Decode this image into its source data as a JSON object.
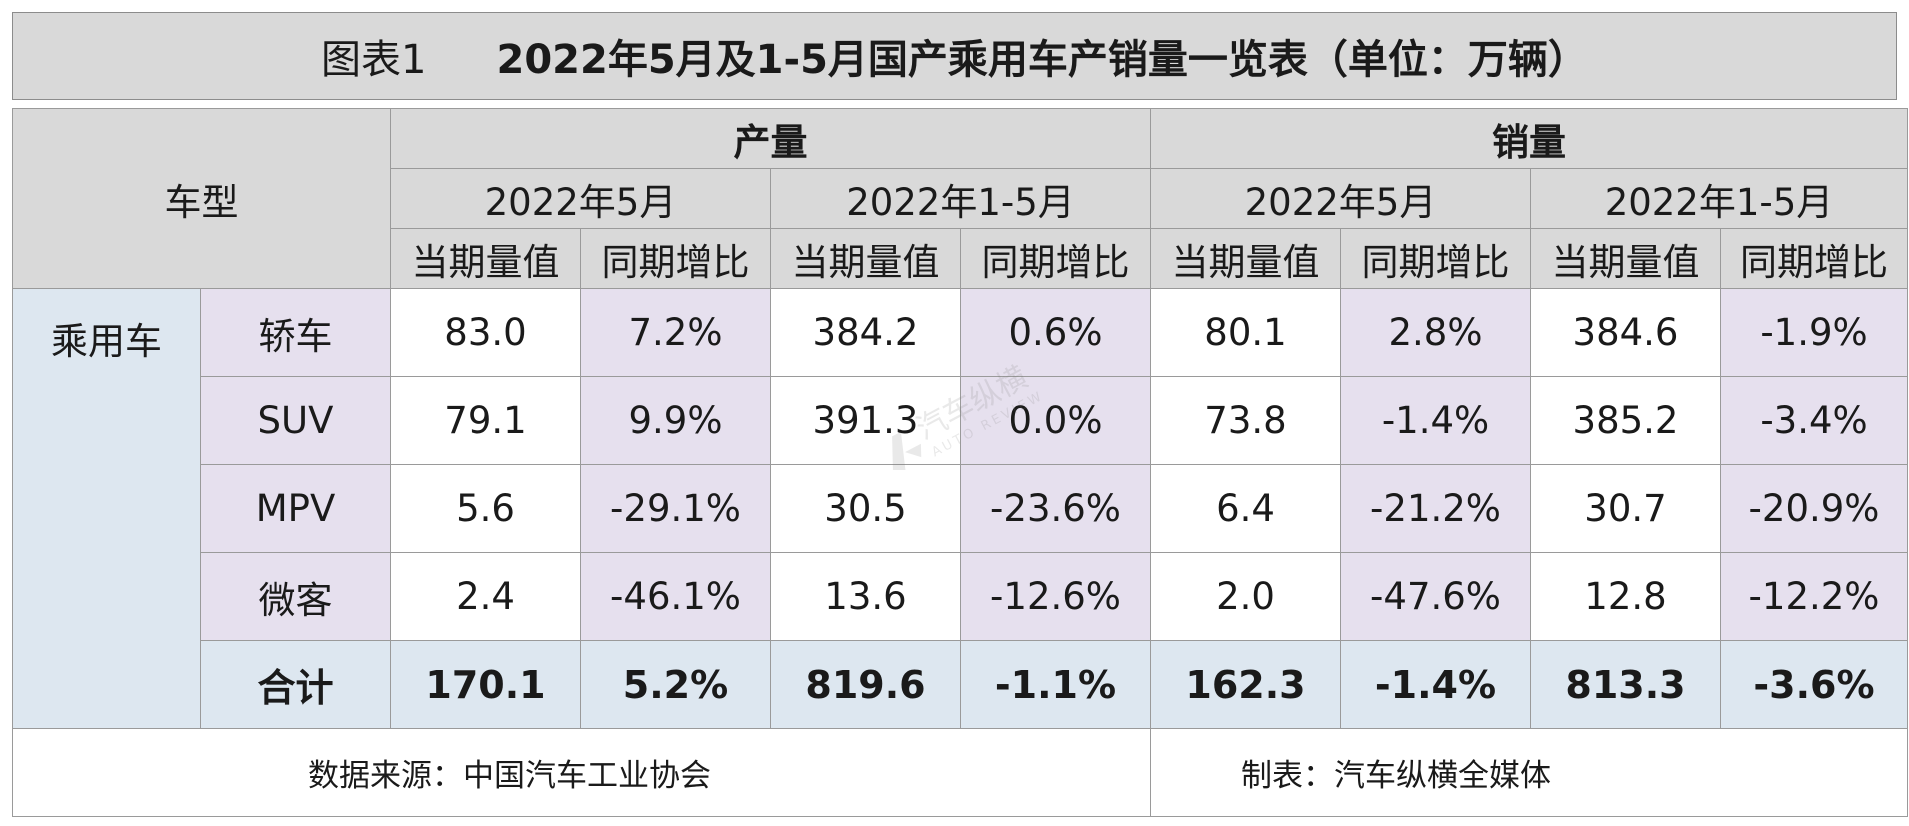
{
  "title": {
    "label": "图表1",
    "text": "2022年5月及1-5月国产乘用车产销量一览表（单位：万辆）"
  },
  "chart_data": {
    "type": "table",
    "row_header_label": "车型",
    "groups": [
      {
        "name": "产量",
        "periods": [
          "2022年5月",
          "2022年1-5月"
        ]
      },
      {
        "name": "销量",
        "periods": [
          "2022年5月",
          "2022年1-5月"
        ]
      }
    ],
    "metrics": [
      "当期量值",
      "同期增比"
    ],
    "category": "乘用车",
    "rows": [
      {
        "type": "轿车",
        "values": [
          "83.0",
          "7.2%",
          "384.2",
          "0.6%",
          "80.1",
          "2.8%",
          "384.6",
          "-1.9%"
        ]
      },
      {
        "type": "SUV",
        "values": [
          "79.1",
          "9.9%",
          "391.3",
          "0.0%",
          "73.8",
          "-1.4%",
          "385.2",
          "-3.4%"
        ]
      },
      {
        "type": "MPV",
        "values": [
          "5.6",
          "-29.1%",
          "30.5",
          "-23.6%",
          "6.4",
          "-21.2%",
          "30.7",
          "-20.9%"
        ]
      },
      {
        "type": "微客",
        "values": [
          "2.4",
          "-46.1%",
          "13.6",
          "-12.6%",
          "2.0",
          "-47.6%",
          "12.8",
          "-12.2%"
        ]
      }
    ],
    "total": {
      "label": "合计",
      "values": [
        "170.1",
        "5.2%",
        "819.6",
        "-1.1%",
        "162.3",
        "-1.4%",
        "813.3",
        "-3.6%"
      ]
    }
  },
  "footer": {
    "source": "数据来源：中国汽车工业协会",
    "maker": "制表：汽车纵横全媒体"
  },
  "watermark": {
    "name": "汽车纵横",
    "subtitle": "AUTO REVIEW"
  }
}
